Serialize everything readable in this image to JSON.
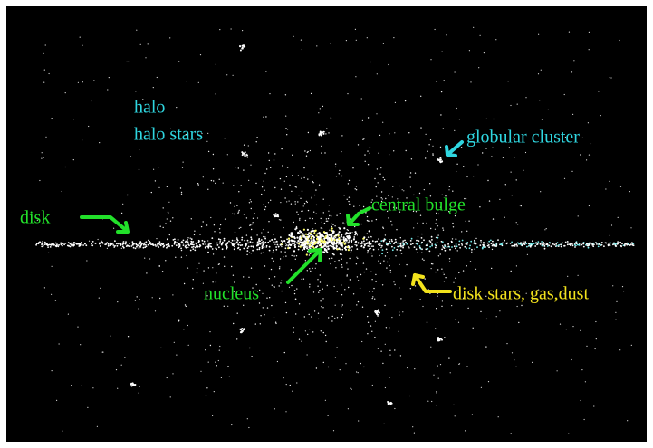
{
  "labels": {
    "halo": "halo",
    "halo_stars": "halo stars",
    "globular_cluster": "globular cluster",
    "disk": "disk",
    "central_bulge": "central bulge",
    "nucleus": "nucleus",
    "disk_stars": "disk stars, gas,dust"
  }
}
